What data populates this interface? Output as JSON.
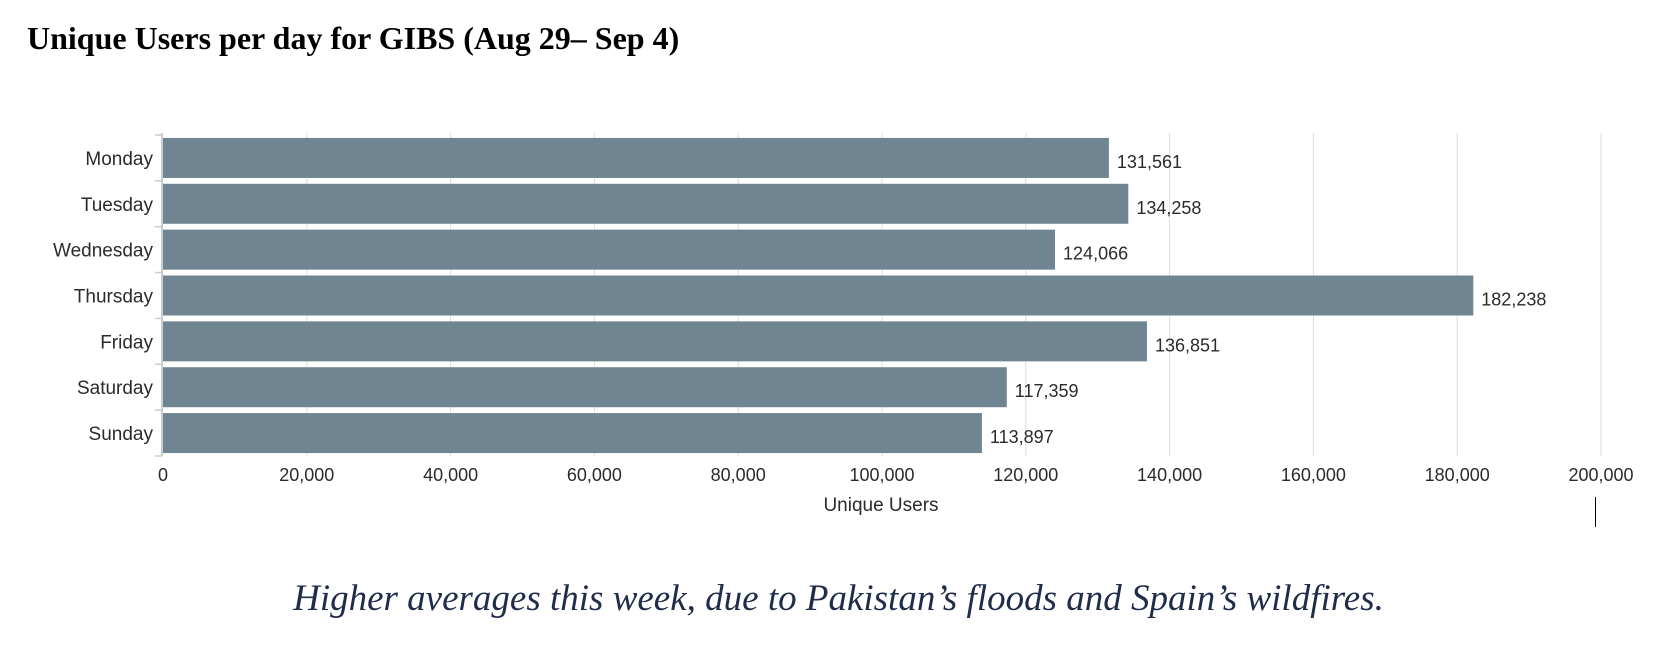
{
  "page": {
    "title": "Unique Users per day for GIBS (Aug 29– Sep 4)",
    "caption": "Higher averages this week, due to Pakistan’s floods and Spain’s wildfires."
  },
  "chart_data": {
    "type": "bar",
    "orientation": "horizontal",
    "categories": [
      "Monday",
      "Tuesday",
      "Wednesday",
      "Thursday",
      "Friday",
      "Saturday",
      "Sunday"
    ],
    "values": [
      131561,
      134258,
      124066,
      182238,
      136851,
      117359,
      113897
    ],
    "value_labels": [
      "131,561",
      "134,258",
      "124,066",
      "182,238",
      "136,851",
      "117,359",
      "113,897"
    ],
    "xlabel": "Unique Users",
    "ylabel": "",
    "xlim": [
      0,
      200000
    ],
    "xticks": [
      0,
      20000,
      40000,
      60000,
      80000,
      100000,
      120000,
      140000,
      160000,
      180000,
      200000
    ],
    "xtick_labels": [
      "0",
      "20,000",
      "40,000",
      "60,000",
      "80,000",
      "100,000",
      "120,000",
      "140,000",
      "160,000",
      "180,000",
      "200,000"
    ],
    "grid": "vertical",
    "colors": {
      "bar": "#708592",
      "grid": "#dddddd",
      "axis": "#c8cdd1",
      "caption": "#1f2d4a"
    }
  }
}
